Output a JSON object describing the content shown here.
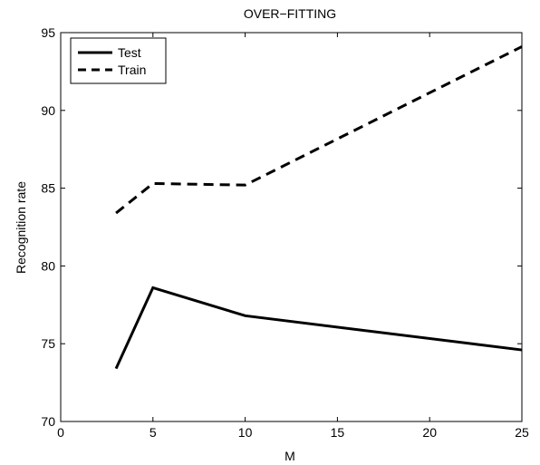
{
  "chart_data": {
    "type": "line",
    "title": "OVER−FITTING",
    "xlabel": "M",
    "ylabel": "Recognition rate",
    "xlim": [
      0,
      25
    ],
    "ylim": [
      70,
      95
    ],
    "xticks": [
      "0",
      "5",
      "10",
      "15",
      "20",
      "25"
    ],
    "yticks": [
      "70",
      "75",
      "80",
      "85",
      "90",
      "95"
    ],
    "grid": false,
    "legend_position": "top-left",
    "series": [
      {
        "name": "Test",
        "style": "solid",
        "color": "#000000",
        "x": [
          3,
          5,
          10,
          25
        ],
        "y": [
          73.4,
          78.6,
          76.8,
          74.6
        ]
      },
      {
        "name": "Train",
        "style": "dashed",
        "color": "#000000",
        "x": [
          3,
          5,
          10,
          25
        ],
        "y": [
          83.4,
          85.3,
          85.2,
          94.1
        ]
      }
    ]
  }
}
